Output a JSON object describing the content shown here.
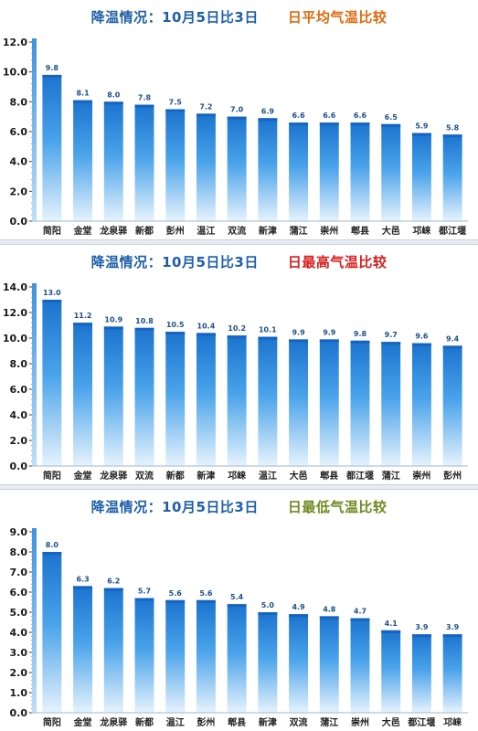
{
  "chart_data": [
    {
      "type": "bar",
      "title_main": "降温情况：10月5日比3日",
      "title_sub": "日平均气温比较",
      "title_sub_color": "#e06a10",
      "categories": [
        "简阳",
        "金堂",
        "龙泉驿",
        "新都",
        "彭州",
        "温江",
        "双流",
        "新津",
        "蒲江",
        "崇州",
        "郫县",
        "大邑",
        "邛崃",
        "都江堰"
      ],
      "values": [
        9.8,
        8.1,
        8.0,
        7.8,
        7.5,
        7.2,
        7.0,
        6.9,
        6.6,
        6.6,
        6.6,
        6.5,
        5.9,
        5.8
      ],
      "value_labels": [
        "9.8",
        "8.1",
        "8.0",
        "7.8",
        "7.5",
        "7.2",
        "7.0",
        "6.9",
        "6.6",
        "6.6",
        "6.6",
        "6.5",
        "5.9",
        "5.8"
      ],
      "ylim": [
        0,
        12
      ],
      "yticks": [
        "0.0",
        "2.0",
        "4.0",
        "6.0",
        "8.0",
        "10.0",
        "12.0"
      ],
      "ytick_values": [
        0,
        2,
        4,
        6,
        8,
        10,
        12
      ]
    },
    {
      "type": "bar",
      "title_main": "降温情况：10月5日比3日",
      "title_sub": "日最高气温比较",
      "title_sub_color": "#d81e1e",
      "categories": [
        "简阳",
        "金堂",
        "龙泉驿",
        "双流",
        "新都",
        "新津",
        "邛崃",
        "温江",
        "大邑",
        "郫县",
        "都江堰",
        "蒲江",
        "崇州",
        "彭州"
      ],
      "values": [
        13.0,
        11.2,
        10.9,
        10.8,
        10.5,
        10.4,
        10.2,
        10.1,
        9.9,
        9.9,
        9.8,
        9.7,
        9.6,
        9.4
      ],
      "value_labels": [
        "13.0",
        "11.2",
        "10.9",
        "10.8",
        "10.5",
        "10.4",
        "10.2",
        "10.1",
        "9.9",
        "9.9",
        "9.8",
        "9.7",
        "9.6",
        "9.4"
      ],
      "ylim": [
        0,
        14
      ],
      "yticks": [
        "0.0",
        "2.0",
        "4.0",
        "6.0",
        "8.0",
        "10.0",
        "12.0",
        "14.0"
      ],
      "ytick_values": [
        0,
        2,
        4,
        6,
        8,
        10,
        12,
        14
      ]
    },
    {
      "type": "bar",
      "title_main": "降温情况：10月5日比3日",
      "title_sub": "日最低气温比较",
      "title_sub_color": "#6f8a1e",
      "categories": [
        "简阳",
        "金堂",
        "龙泉驿",
        "新都",
        "温江",
        "彭州",
        "郫县",
        "新津",
        "双流",
        "蒲江",
        "崇州",
        "大邑",
        "都江堰",
        "邛崃"
      ],
      "values": [
        8.0,
        6.3,
        6.2,
        5.7,
        5.6,
        5.6,
        5.4,
        5.0,
        4.9,
        4.8,
        4.7,
        4.1,
        3.9,
        3.9
      ],
      "value_labels": [
        "8.0",
        "6.3",
        "6.2",
        "5.7",
        "5.6",
        "5.6",
        "5.4",
        "5.0",
        "4.9",
        "4.8",
        "4.7",
        "4.1",
        "3.9",
        "3.9"
      ],
      "ylim": [
        0,
        9
      ],
      "yticks": [
        "0.0",
        "1.0",
        "2.0",
        "3.0",
        "4.0",
        "5.0",
        "6.0",
        "7.0",
        "8.0",
        "9.0"
      ],
      "ytick_values": [
        0,
        1,
        2,
        3,
        4,
        5,
        6,
        7,
        8,
        9
      ]
    }
  ]
}
